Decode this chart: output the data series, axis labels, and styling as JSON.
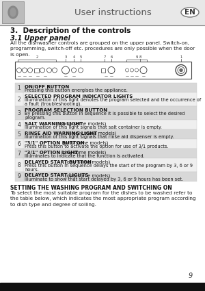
{
  "page_bg": "#ffffff",
  "header_bg": "#e8e8e8",
  "header_title": "User instructions",
  "header_en": "EN",
  "section_title": "3.  Description of the controls",
  "subsection_title": "3.1 Upper panel",
  "intro_text": "All the dishwasher controls are grouped on the upper panel. Switch-on,\nprogramming, switch-off etc. procedures are only possible when the door\nis open.",
  "items": [
    {
      "num": "1",
      "bold": "ON/OFF BUTTON",
      "rest": "\nPressing this button energises the appliance.",
      "shaded": true,
      "lines": 2
    },
    {
      "num": "2",
      "bold": "SELECTED PROGRAM INDICATOR LIGHTS",
      "rest": "\nIllumination of this light denotes the program selected and the occurrence of\na fault (troubleshooting).",
      "shaded": false,
      "lines": 3
    },
    {
      "num": "3",
      "bold": "PROGRAM SELECTION BUTTON",
      "rest": "\nBy pressing this button in sequence it is possible to select the desired\nprogram.",
      "shaded": true,
      "lines": 3
    },
    {
      "num": "4",
      "bold": "SALT WARNING LIGHT",
      "rest": " (only some models)\nIllumination of this light signals that salt container is empty.",
      "shaded": false,
      "lines": 2
    },
    {
      "num": "5",
      "bold": "RINSE AID WARNING LIGHT",
      "rest": " (only some models)\nIllumination of this light signals that rinse aid dispenser is empty.",
      "shaded": true,
      "lines": 2
    },
    {
      "num": "6",
      "bold": "\"3/1\" OPTION BUTTON",
      "rest": " (only some models)\nPress this button to activate the option for use of 3/1 products.",
      "shaded": false,
      "lines": 2
    },
    {
      "num": "7",
      "bold": "\"3/1\" OPTION LIGHT",
      "rest": " (only some models)\nIlluminates to indicate that the function is activated.",
      "shaded": true,
      "lines": 2
    },
    {
      "num": "8",
      "bold": "DELAYED START BUTTON",
      "rest": " (only some models)\nPress this button in sequence delays the start of the program by 3, 6 or 9\nhours.",
      "shaded": false,
      "lines": 3
    },
    {
      "num": "9",
      "bold": "DELAYED START LIGHTS",
      "rest": " (only some models)\nIlluminate to show that start delayed by 3, 6 or 9 hours has been set.",
      "shaded": true,
      "lines": 2
    }
  ],
  "setting_title": "SETTING THE WASHING PROGRAM AND SWITCHING ON",
  "setting_text": "To select the most suitable program for the dishes to be washed refer to\nthe table below, which indicates the most appropriate program according\nto dish type and degree of soiling.",
  "page_number": "9",
  "footer_bg": "#111111",
  "shade_color": "#d8d8d8",
  "unshade_color": "#efefef"
}
